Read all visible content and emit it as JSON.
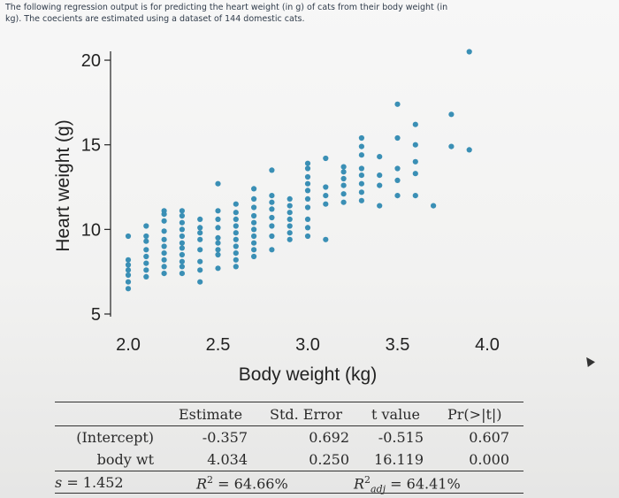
{
  "prompt": {
    "line1": "The following regression output is for predicting the heart weight (in g) of cats from their body weight (in",
    "line2": "kg). The coecients are estimated using a dataset of 144 domestic cats."
  },
  "colors": {
    "point": "#3a8fb5",
    "axis": "#222222"
  },
  "chart_data": {
    "type": "scatter",
    "xlabel": "Body weight (kg)",
    "ylabel": "Heart weight (g)",
    "xlim": [
      1.95,
      4.1
    ],
    "ylim": [
      4.5,
      21.0
    ],
    "xticks": [
      "2.0",
      "2.5",
      "3.0",
      "3.5",
      "4.0"
    ],
    "yticks": [
      "5",
      "10",
      "15",
      "20"
    ],
    "points": [
      [
        2.0,
        6.5
      ],
      [
        2.0,
        6.9
      ],
      [
        2.0,
        7.3
      ],
      [
        2.0,
        7.6
      ],
      [
        2.0,
        7.9
      ],
      [
        2.0,
        8.2
      ],
      [
        2.0,
        9.6
      ],
      [
        2.1,
        7.2
      ],
      [
        2.1,
        7.6
      ],
      [
        2.1,
        8.0
      ],
      [
        2.1,
        8.4
      ],
      [
        2.1,
        8.8
      ],
      [
        2.1,
        9.3
      ],
      [
        2.1,
        9.6
      ],
      [
        2.1,
        10.2
      ],
      [
        2.2,
        7.4
      ],
      [
        2.2,
        7.8
      ],
      [
        2.2,
        8.2
      ],
      [
        2.2,
        8.6
      ],
      [
        2.2,
        9.0
      ],
      [
        2.2,
        9.4
      ],
      [
        2.2,
        9.9
      ],
      [
        2.2,
        10.5
      ],
      [
        2.2,
        10.9
      ],
      [
        2.2,
        11.1
      ],
      [
        2.3,
        7.4
      ],
      [
        2.3,
        7.8
      ],
      [
        2.3,
        8.1
      ],
      [
        2.3,
        8.5
      ],
      [
        2.3,
        8.9
      ],
      [
        2.3,
        9.2
      ],
      [
        2.3,
        9.6
      ],
      [
        2.3,
        10.0
      ],
      [
        2.3,
        10.4
      ],
      [
        2.3,
        10.8
      ],
      [
        2.3,
        11.1
      ],
      [
        2.4,
        6.9
      ],
      [
        2.4,
        7.6
      ],
      [
        2.4,
        8.1
      ],
      [
        2.4,
        8.8
      ],
      [
        2.4,
        9.4
      ],
      [
        2.4,
        9.8
      ],
      [
        2.4,
        10.1
      ],
      [
        2.4,
        10.6
      ],
      [
        2.5,
        7.7
      ],
      [
        2.5,
        8.5
      ],
      [
        2.5,
        8.8
      ],
      [
        2.5,
        9.2
      ],
      [
        2.5,
        9.5
      ],
      [
        2.5,
        10.1
      ],
      [
        2.5,
        10.6
      ],
      [
        2.5,
        11.1
      ],
      [
        2.5,
        12.7
      ],
      [
        2.6,
        7.8
      ],
      [
        2.6,
        8.2
      ],
      [
        2.6,
        8.6
      ],
      [
        2.6,
        9.0
      ],
      [
        2.6,
        9.4
      ],
      [
        2.6,
        9.8
      ],
      [
        2.6,
        10.2
      ],
      [
        2.6,
        10.6
      ],
      [
        2.6,
        11.0
      ],
      [
        2.6,
        11.5
      ],
      [
        2.7,
        8.4
      ],
      [
        2.7,
        8.8
      ],
      [
        2.7,
        9.2
      ],
      [
        2.7,
        9.6
      ],
      [
        2.7,
        10.0
      ],
      [
        2.7,
        10.4
      ],
      [
        2.7,
        10.8
      ],
      [
        2.7,
        11.3
      ],
      [
        2.7,
        11.8
      ],
      [
        2.7,
        12.4
      ],
      [
        2.8,
        8.8
      ],
      [
        2.8,
        9.6
      ],
      [
        2.8,
        10.2
      ],
      [
        2.8,
        10.7
      ],
      [
        2.8,
        11.2
      ],
      [
        2.8,
        11.6
      ],
      [
        2.8,
        12.0
      ],
      [
        2.8,
        13.5
      ],
      [
        2.9,
        9.4
      ],
      [
        2.9,
        9.8
      ],
      [
        2.9,
        10.2
      ],
      [
        2.9,
        10.6
      ],
      [
        2.9,
        11.0
      ],
      [
        2.9,
        11.4
      ],
      [
        2.9,
        11.8
      ],
      [
        3.0,
        9.6
      ],
      [
        3.0,
        10.1
      ],
      [
        3.0,
        10.6
      ],
      [
        3.0,
        11.3
      ],
      [
        3.0,
        11.8
      ],
      [
        3.0,
        12.3
      ],
      [
        3.0,
        12.7
      ],
      [
        3.0,
        13.1
      ],
      [
        3.0,
        13.6
      ],
      [
        3.0,
        13.9
      ],
      [
        3.1,
        9.4
      ],
      [
        3.1,
        11.5
      ],
      [
        3.1,
        12.0
      ],
      [
        3.1,
        12.5
      ],
      [
        3.1,
        14.2
      ],
      [
        3.2,
        11.6
      ],
      [
        3.2,
        12.1
      ],
      [
        3.2,
        12.6
      ],
      [
        3.2,
        13.0
      ],
      [
        3.2,
        13.4
      ],
      [
        3.2,
        13.7
      ],
      [
        3.3,
        11.7
      ],
      [
        3.3,
        12.2
      ],
      [
        3.3,
        12.7
      ],
      [
        3.3,
        13.2
      ],
      [
        3.3,
        13.6
      ],
      [
        3.3,
        14.4
      ],
      [
        3.3,
        14.9
      ],
      [
        3.3,
        15.4
      ],
      [
        3.4,
        11.4
      ],
      [
        3.4,
        12.6
      ],
      [
        3.4,
        13.2
      ],
      [
        3.4,
        14.3
      ],
      [
        3.5,
        12.0
      ],
      [
        3.5,
        12.9
      ],
      [
        3.5,
        13.6
      ],
      [
        3.5,
        15.4
      ],
      [
        3.5,
        17.4
      ],
      [
        3.6,
        12.0
      ],
      [
        3.6,
        13.3
      ],
      [
        3.6,
        14.0
      ],
      [
        3.6,
        15.0
      ],
      [
        3.6,
        16.2
      ],
      [
        3.7,
        11.4
      ],
      [
        3.8,
        14.9
      ],
      [
        3.8,
        16.8
      ],
      [
        3.9,
        14.7
      ],
      [
        3.9,
        20.5
      ]
    ]
  },
  "regression": {
    "headers": [
      "Estimate",
      "Std. Error",
      "t value",
      "Pr(>|t|)"
    ],
    "rows": [
      {
        "label": "(Intercept)",
        "estimate": "-0.357",
        "std_error": "0.692",
        "t_value": "-0.515",
        "p_value": "0.607"
      },
      {
        "label": "body wt",
        "estimate": "4.034",
        "std_error": "0.250",
        "t_value": "16.119",
        "p_value": "0.000"
      }
    ],
    "s_label": "s",
    "s_value": "= 1.452",
    "r2_label": "R",
    "r2_value": "= 64.66%",
    "r2adj_label": "R",
    "r2adj_sub": "adj",
    "r2adj_value": "= 64.41%"
  }
}
